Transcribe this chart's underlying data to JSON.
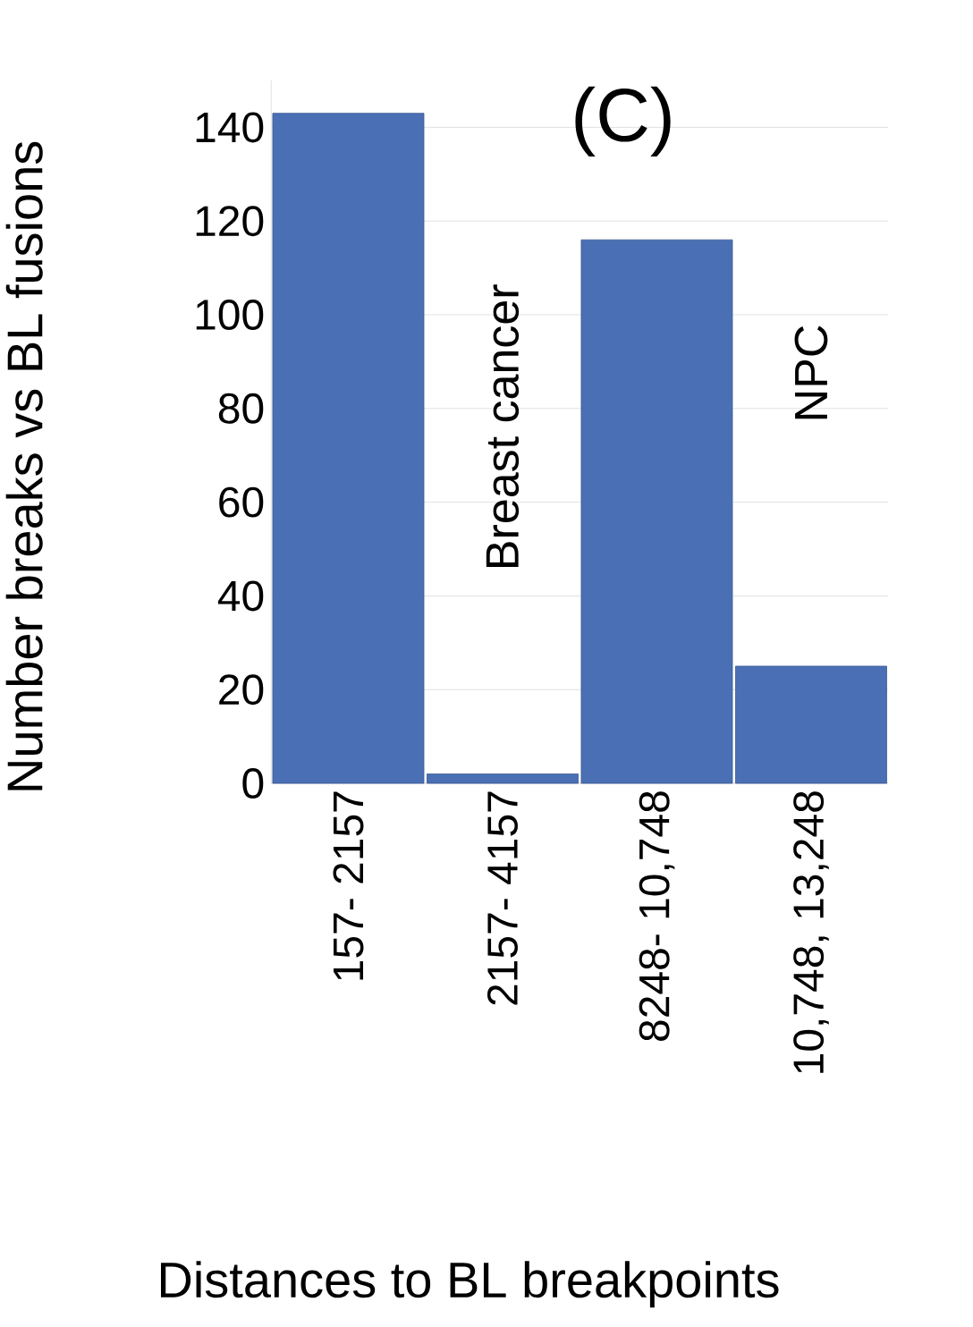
{
  "chart_data": {
    "type": "bar",
    "title": "(C)",
    "xlabel": "Distances to BL breakpoints",
    "ylabel": "Number breaks vs BL fusions",
    "categories": [
      "157- 2157",
      "2157- 4157",
      "8248- 10,748",
      "10,748, 13,248"
    ],
    "series": [
      {
        "name": "Breast cancer",
        "color": "#4a6fb5",
        "values": [
          143,
          2,
          null,
          null
        ]
      },
      {
        "name": "NPC",
        "color": "#4a6fb5",
        "values": [
          null,
          null,
          116,
          25
        ]
      }
    ],
    "ylim": [
      0,
      150
    ],
    "yticks": [
      0,
      20,
      40,
      60,
      80,
      100,
      120,
      140
    ],
    "grid": "y",
    "legend": false
  }
}
